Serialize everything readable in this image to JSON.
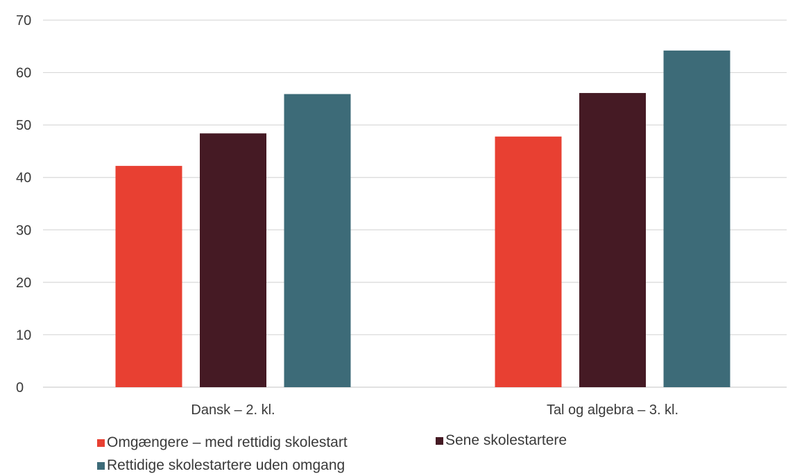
{
  "chart_data": {
    "type": "bar",
    "title": "",
    "xlabel": "",
    "ylabel": "",
    "ylim": [
      0,
      70
    ],
    "yticks": [
      0,
      10,
      20,
      30,
      40,
      50,
      60,
      70
    ],
    "grid": true,
    "legend_position": "bottom",
    "categories": [
      "Dansk – 2. kl.",
      "Tal og algebra – 3. kl."
    ],
    "series": [
      {
        "name": "Omgængere – med rettidig skolestart",
        "color": "#e84032",
        "values": [
          42.2,
          47.8
        ]
      },
      {
        "name": "Sene skolestartere",
        "color": "#451a24",
        "values": [
          48.4,
          56.1
        ]
      },
      {
        "name": "Rettidige skolestartere uden omgang",
        "color": "#3d6b78",
        "values": [
          55.9,
          64.2
        ]
      }
    ]
  }
}
